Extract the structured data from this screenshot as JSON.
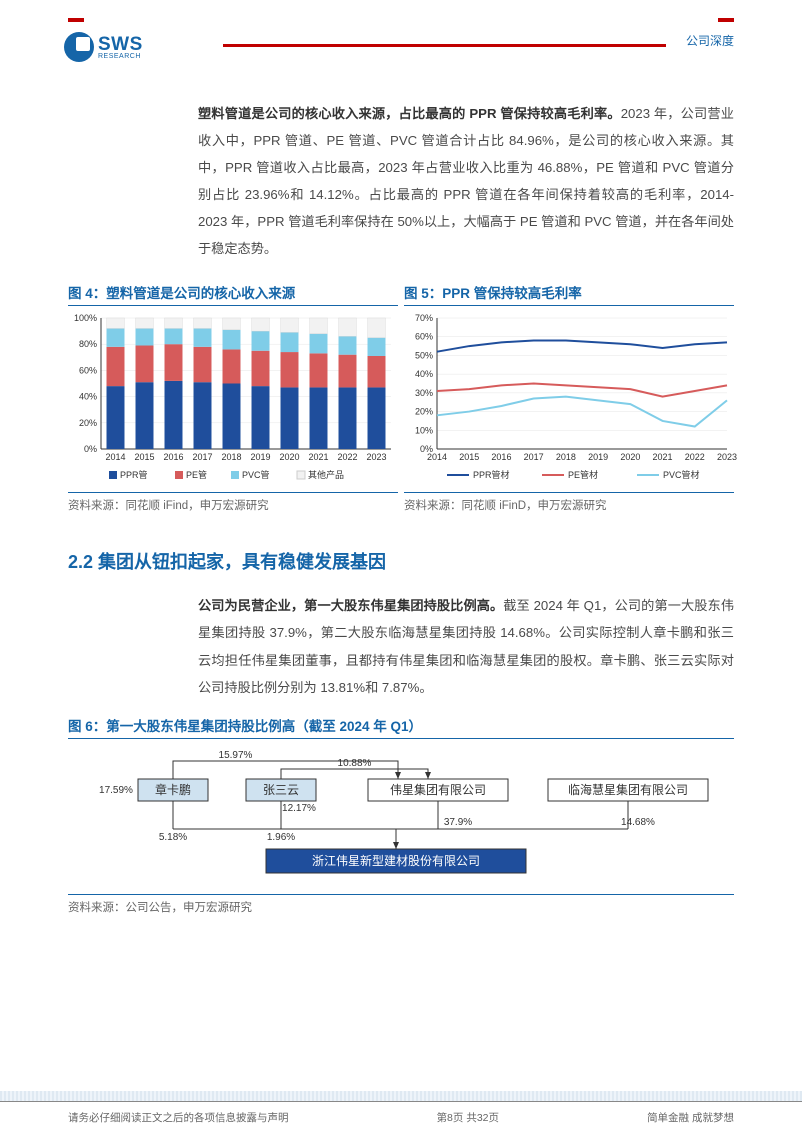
{
  "header": {
    "logo_text": "SWS",
    "logo_sub": "RESEARCH",
    "right_label": "公司深度"
  },
  "para1": {
    "bold": "塑料管道是公司的核心收入来源，占比最高的 PPR 管保持较高毛利率。",
    "rest": "2023 年，公司营业收入中，PPR 管道、PE 管道、PVC 管道合计占比 84.96%，是公司的核心收入来源。其中，PPR 管道收入占比最高，2023 年占营业收入比重为 46.88%，PE 管道和 PVC 管道分别占比 23.96%和 14.12%。占比最高的 PPR 管道在各年间保持着较高的毛利率，2014-2023 年，PPR 管道毛利率保持在 50%以上，大幅高于 PE 管道和 PVC 管道，并在各年间处于稳定态势。"
  },
  "chart4": {
    "title": "图 4：塑料管道是公司的核心收入来源",
    "type": "stacked-bar-percent",
    "categories": [
      "2014",
      "2015",
      "2016",
      "2017",
      "2018",
      "2019",
      "2020",
      "2021",
      "2022",
      "2023"
    ],
    "series": [
      {
        "name": "PPR管",
        "color": "#1f4e9c",
        "values": [
          48,
          51,
          52,
          51,
          50,
          48,
          47,
          47,
          47,
          47
        ]
      },
      {
        "name": "PE管",
        "color": "#d65b5b",
        "values": [
          30,
          28,
          28,
          27,
          26,
          27,
          27,
          26,
          25,
          24
        ]
      },
      {
        "name": "PVC管",
        "color": "#7fcde8",
        "values": [
          14,
          13,
          12,
          14,
          15,
          15,
          15,
          15,
          14,
          14
        ]
      },
      {
        "name": "其他产品",
        "color": "#f2f2f2",
        "values": [
          8,
          8,
          8,
          8,
          9,
          10,
          11,
          12,
          14,
          15
        ]
      }
    ],
    "ylim": [
      0,
      100
    ],
    "ytick_step": 20,
    "axis_color": "#333",
    "grid_color": "#e6e6e6",
    "label_fontsize": 9,
    "source": "资料来源：同花顺 iFind，申万宏源研究"
  },
  "chart5": {
    "title": "图 5：PPR 管保持较高毛利率",
    "type": "line",
    "categories": [
      "2014",
      "2015",
      "2016",
      "2017",
      "2018",
      "2019",
      "2020",
      "2021",
      "2022",
      "2023"
    ],
    "series": [
      {
        "name": "PPR管材",
        "color": "#1f4e9c",
        "values": [
          52,
          55,
          57,
          58,
          58,
          57,
          56,
          54,
          56,
          57
        ]
      },
      {
        "name": "PE管材",
        "color": "#d65b5b",
        "values": [
          31,
          32,
          34,
          35,
          34,
          33,
          32,
          28,
          31,
          34
        ]
      },
      {
        "name": "PVC管材",
        "color": "#7fcde8",
        "values": [
          18,
          20,
          23,
          27,
          28,
          26,
          24,
          15,
          12,
          26
        ]
      }
    ],
    "ylim": [
      0,
      70
    ],
    "ytick_step": 10,
    "axis_color": "#333",
    "grid_color": "#e6e6e6",
    "label_fontsize": 9,
    "line_width": 2,
    "source": "资料来源：同花顺 iFinD，申万宏源研究"
  },
  "section_heading": "2.2 集团从钮扣起家，具有稳健发展基因",
  "para2": {
    "bold": "公司为民营企业，第一大股东伟星集团持股比例高。",
    "rest": "截至 2024 年 Q1，公司的第一大股东伟星集团持股 37.9%，第二大股东临海慧星集团持股 14.68%。公司实际控制人章卡鹏和张三云均担任伟星集团董事，且都持有伟星集团和临海慧星集团的股权。章卡鹏、张三云实际对公司持股比例分别为 13.81%和 7.87%。"
  },
  "chart6": {
    "title": "图 6：第一大股东伟星集团持股比例高（截至 2024 年 Q1）",
    "type": "org-chart",
    "nodes": {
      "zhangkapeng": {
        "label": "章卡鹏",
        "fill": "#cfe2f0",
        "text_color": "#333"
      },
      "zhangsanyun": {
        "label": "张三云",
        "fill": "#cfe2f0",
        "text_color": "#333"
      },
      "weixing_group": {
        "label": "伟星集团有限公司",
        "fill": "#ffffff",
        "text_color": "#333"
      },
      "linhai": {
        "label": "临海慧星集团有限公司",
        "fill": "#ffffff",
        "text_color": "#333"
      },
      "target": {
        "label": "浙江伟星新型建材股份有限公司",
        "fill": "#1f4e9c",
        "text_color": "#ffffff"
      }
    },
    "edge_labels": {
      "zkp_wx": "15.97%",
      "zkp_lh": "17.59%",
      "zsy_wx": "10.88%",
      "zsy_lh": "12.17%",
      "zkp_tgt": "5.18%",
      "zsy_tgt": "1.96%",
      "wx_tgt": "37.9%",
      "lh_tgt": "14.68%"
    },
    "edge_color": "#333",
    "source": "资料来源：公司公告，申万宏源研究"
  },
  "footer": {
    "left": "请务必仔细阅读正文之后的各项信息披露与声明",
    "center": "第8页 共32页",
    "right": "简单金融 成就梦想"
  }
}
